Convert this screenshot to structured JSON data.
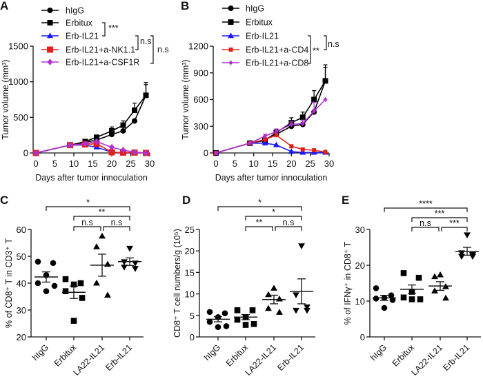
{
  "panel_letters": [
    "A",
    "B",
    "C",
    "D",
    "E"
  ],
  "chart_data": [
    {
      "panel": "A",
      "type": "line",
      "xlabel": "Days after tumor innoculation",
      "ylabel": "Tumor volume (mm³)",
      "xlim": [
        0,
        30
      ],
      "ylim": [
        0,
        1500
      ],
      "xticks": [
        0,
        5,
        10,
        15,
        20,
        25,
        30
      ],
      "yticks": [
        0,
        500,
        1000,
        1500
      ],
      "x": [
        0,
        9,
        13,
        16,
        20,
        23,
        26,
        29
      ],
      "legend": "top-left",
      "series": [
        {
          "name": "hIgG",
          "marker": "circle",
          "color": "#000000",
          "values": [
            0,
            110,
            150,
            180,
            260,
            310,
            450,
            810
          ],
          "err": [
            0,
            0,
            15,
            20,
            30,
            20,
            20,
            150
          ]
        },
        {
          "name": "Erbitux",
          "marker": "square",
          "color": "#000000",
          "values": [
            0,
            110,
            160,
            220,
            310,
            390,
            600,
            810
          ],
          "err": [
            0,
            0,
            20,
            30,
            55,
            60,
            100,
            180
          ]
        },
        {
          "name": "Erb-IL21",
          "marker": "triangle",
          "color": "#1a1aff",
          "values": [
            0,
            110,
            110,
            80,
            10,
            0,
            0,
            0
          ],
          "err": [
            0,
            0,
            0,
            0,
            0,
            0,
            0,
            0
          ]
        },
        {
          "name": "Erb-IL21+a-NK1.1",
          "marker": "square",
          "color": "#e0201b",
          "values": [
            0,
            110,
            120,
            130,
            10,
            5,
            5,
            0
          ],
          "err": [
            0,
            0,
            0,
            0,
            0,
            0,
            0,
            0
          ]
        },
        {
          "name": "Erb-IL21+a-CSF1R",
          "marker": "diamond",
          "color": "#b030d0",
          "values": [
            0,
            110,
            130,
            160,
            80,
            40,
            10,
            0
          ],
          "err": [
            0,
            0,
            0,
            0,
            0,
            0,
            0,
            0
          ]
        }
      ],
      "significance": [
        {
          "groups": [
            "Erbitux",
            "Erb-IL21"
          ],
          "label": "***"
        },
        {
          "groups": [
            "Erb-IL21",
            "Erb-IL21+a-NK1.1"
          ],
          "label": "n.s"
        },
        {
          "groups": [
            "Erb-IL21",
            "Erb-IL21+a-CSF1R"
          ],
          "label": "n.s"
        }
      ]
    },
    {
      "panel": "B",
      "type": "line",
      "xlabel": "Days after tumor innoculation",
      "ylabel": "Tumor volume (mm³)",
      "xlim": [
        0,
        30
      ],
      "ylim": [
        0,
        1200
      ],
      "xticks": [
        0,
        5,
        10,
        15,
        20,
        25,
        30
      ],
      "yticks": [
        0,
        300,
        600,
        900,
        1200
      ],
      "x": [
        0,
        9,
        13,
        16,
        20,
        23,
        26,
        29
      ],
      "legend": "top-left",
      "series": [
        {
          "name": "hIgG",
          "marker": "circle",
          "color": "#000000",
          "values": [
            0,
            110,
            150,
            210,
            300,
            320,
            460,
            810
          ],
          "err": [
            0,
            0,
            15,
            20,
            30,
            20,
            20,
            150
          ]
        },
        {
          "name": "Erbitux",
          "marker": "square",
          "color": "#000000",
          "values": [
            0,
            110,
            140,
            230,
            340,
            400,
            600,
            810
          ],
          "err": [
            0,
            0,
            20,
            30,
            55,
            60,
            100,
            180
          ]
        },
        {
          "name": "Erb-IL21",
          "marker": "triangle",
          "color": "#1a1aff",
          "values": [
            0,
            110,
            110,
            90,
            15,
            5,
            5,
            5
          ],
          "err": [
            0,
            0,
            0,
            0,
            0,
            0,
            0,
            0
          ]
        },
        {
          "name": "Erb-IL21+a-CD4",
          "marker": "square",
          "color": "#e0201b",
          "values": [
            0,
            110,
            150,
            200,
            75,
            40,
            30,
            10
          ],
          "err": [
            0,
            0,
            0,
            0,
            0,
            0,
            0,
            0
          ]
        },
        {
          "name": "Erb-IL21+a-CD8",
          "marker": "diamond",
          "color": "#b030d0",
          "values": [
            0,
            110,
            190,
            240,
            320,
            330,
            470,
            600
          ],
          "err": [
            0,
            0,
            20,
            30,
            30,
            40,
            100,
            0
          ]
        }
      ],
      "significance": [
        {
          "groups": [
            "Erb-IL21",
            "Erb-IL21+a-CD8"
          ],
          "label": "**"
        },
        {
          "groups": [
            "Erb-IL21",
            "Erb-IL21+a-CD4"
          ],
          "label": "n.s"
        }
      ]
    },
    {
      "panel": "C",
      "type": "scatter",
      "ylabel": "% of CD8⁺ T in CD3⁺ T",
      "ylim": [
        20,
        60
      ],
      "yticks": [
        20,
        30,
        40,
        50,
        60
      ],
      "categories": [
        "hIgG",
        "Erbitux",
        "LA22-IL21",
        "Erb-IL21"
      ],
      "markers": [
        "circle",
        "square",
        "triangle",
        "triangle-down"
      ],
      "points": [
        [
          48,
          47.5,
          43,
          40,
          39,
          37
        ],
        [
          41.5,
          40,
          39.5,
          37,
          34.5,
          26
        ],
        [
          57.5,
          53.5,
          47,
          40,
          35.5
        ],
        [
          53,
          48,
          47.5,
          46,
          45.5
        ]
      ],
      "mean": [
        42.3,
        36.6,
        46.7,
        48.0
      ],
      "sem": [
        1.9,
        2.3,
        4.1,
        1.4
      ],
      "significance": [
        {
          "groups": [
            "hIgG",
            "Erb-IL21"
          ],
          "label": "*"
        },
        {
          "groups": [
            "Erbitux",
            "Erb-IL21"
          ],
          "label": "**"
        },
        {
          "groups": [
            "Erbitux",
            "LA22-IL21"
          ],
          "label": "n.s"
        },
        {
          "groups": [
            "LA22-IL21",
            "Erb-IL21"
          ],
          "label": "n.s"
        }
      ]
    },
    {
      "panel": "D",
      "type": "scatter",
      "ylabel": "CD8⁺ T cell numbers/g (10⁵)",
      "ylim": [
        0,
        25
      ],
      "yticks": [
        0,
        5,
        10,
        15,
        20,
        25
      ],
      "categories": [
        "hIgG",
        "Erbitux",
        "LA22-IL21",
        "Erb-IL21"
      ],
      "markers": [
        "circle",
        "square",
        "triangle",
        "triangle-down"
      ],
      "points": [
        [
          5.8,
          5.5,
          4.6,
          3.5,
          2.5,
          2.3
        ],
        [
          6.2,
          6.2,
          4.6,
          4.0,
          3.0,
          2.8
        ],
        [
          11.3,
          9.8,
          8.8,
          6.6,
          5.7
        ],
        [
          21.2,
          9.8,
          7.0,
          6.2,
          6.2
        ]
      ],
      "mean": [
        4.1,
        4.6,
        8.7,
        10.6
      ],
      "sem": [
        0.6,
        0.6,
        1.0,
        2.9
      ],
      "significance": [
        {
          "groups": [
            "hIgG",
            "Erb-IL21"
          ],
          "label": "*"
        },
        {
          "groups": [
            "Erbitux",
            "Erb-IL21"
          ],
          "label": "*"
        },
        {
          "groups": [
            "Erbitux",
            "LA22-IL21"
          ],
          "label": "**"
        },
        {
          "groups": [
            "LA22-IL21",
            "Erb-IL21"
          ],
          "label": "n.s"
        }
      ]
    },
    {
      "panel": "E",
      "type": "scatter",
      "ylabel": "% of IFNγ⁺ in CD8⁺ T",
      "ylim": [
        0,
        30
      ],
      "yticks": [
        0,
        10,
        20,
        30
      ],
      "categories": [
        "hIgG",
        "Erbitux",
        "LA22-IL21",
        "Erb-IL21"
      ],
      "markers": [
        "circle",
        "square",
        "triangle",
        "triangle-down"
      ],
      "points": [
        [
          13.6,
          11.6,
          10.9,
          10.7,
          10.3,
          8.1
        ],
        [
          17.8,
          16.5,
          12.6,
          11,
          10.5,
          10.5
        ],
        [
          17.3,
          16.8,
          14.0,
          12.8,
          10.8
        ],
        [
          28.5,
          23.5,
          23,
          22.5,
          22.5
        ]
      ],
      "mean": [
        10.9,
        13.3,
        14.2,
        23.9
      ],
      "sem": [
        0.7,
        1.2,
        1.2,
        1.1
      ],
      "significance": [
        {
          "groups": [
            "hIgG",
            "Erb-IL21"
          ],
          "label": "****"
        },
        {
          "groups": [
            "Erbitux",
            "Erb-IL21"
          ],
          "label": "***"
        },
        {
          "groups": [
            "Erbitux",
            "LA22-IL21"
          ],
          "label": "n.s"
        },
        {
          "groups": [
            "LA22-IL21",
            "Erb-IL21"
          ],
          "label": "***"
        }
      ]
    }
  ]
}
